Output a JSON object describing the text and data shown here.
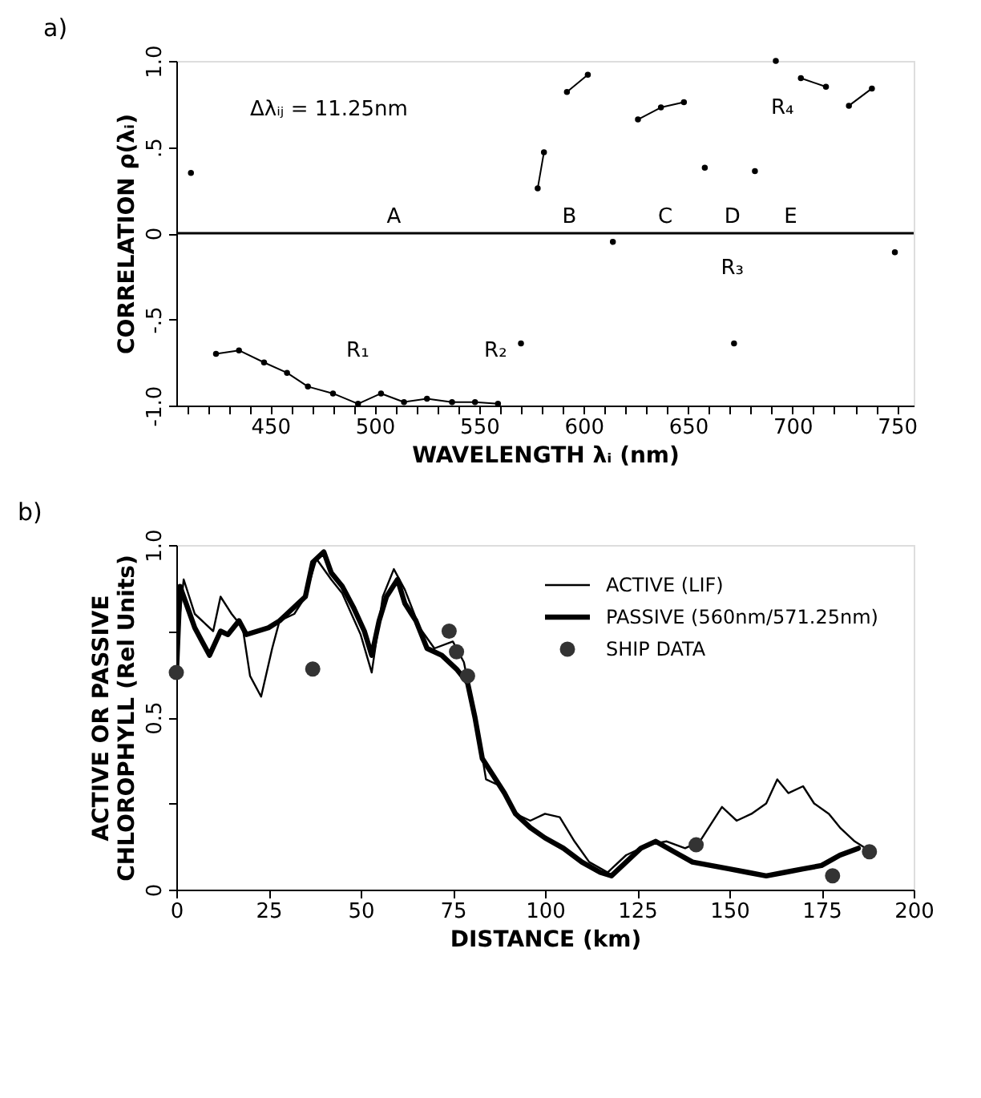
{
  "chart_data": [
    {
      "type": "line",
      "title": "a)",
      "xlabel": "WAVELENGTH λᵢ (nm)",
      "ylabel": "CORRELATION ρ(λᵢ)",
      "marker": "circle",
      "grid": false,
      "legend": false,
      "xlim": [
        405,
        758
      ],
      "xticks": [
        {
          "value": 410,
          "label": null
        },
        {
          "value": 420,
          "label": null
        },
        {
          "value": 430,
          "label": null
        },
        {
          "value": 440,
          "label": null
        },
        450,
        {
          "value": 460,
          "label": null
        },
        {
          "value": 470,
          "label": null
        },
        {
          "value": 480,
          "label": null
        },
        {
          "value": 490,
          "label": null
        },
        500,
        {
          "value": 510,
          "label": null
        },
        {
          "value": 520,
          "label": null
        },
        {
          "value": 530,
          "label": null
        },
        {
          "value": 540,
          "label": null
        },
        550,
        {
          "value": 560,
          "label": null
        },
        {
          "value": 570,
          "label": null
        },
        {
          "value": 580,
          "label": null
        },
        {
          "value": 590,
          "label": null
        },
        600,
        {
          "value": 610,
          "label": null
        },
        {
          "value": 620,
          "label": null
        },
        {
          "value": 630,
          "label": null
        },
        {
          "value": 640,
          "label": null
        },
        650,
        {
          "value": 660,
          "label": null
        },
        {
          "value": 670,
          "label": null
        },
        {
          "value": 680,
          "label": null
        },
        {
          "value": 690,
          "label": null
        },
        700,
        {
          "value": 710,
          "label": null
        },
        {
          "value": 720,
          "label": null
        },
        {
          "value": 730,
          "label": null
        },
        {
          "value": 740,
          "label": null
        },
        750
      ],
      "ylim": [
        -1,
        1
      ],
      "yticks": [
        {
          "value": -1,
          "label": "-1.0"
        },
        {
          "value": -0.5,
          "label": "-.5"
        },
        0,
        {
          "value": 0.5,
          "label": ".5"
        },
        {
          "value": 1,
          "label": "1.0"
        }
      ],
      "ref_lines": [
        {
          "axis": "y",
          "value": 0,
          "color": "#000000"
        }
      ],
      "series": [
        {
          "color": "#000000",
          "x": [
            412
          ],
          "values": [
            0.35
          ]
        },
        {
          "color": "#000000",
          "x": [
            424,
            435,
            447,
            458,
            468,
            480,
            492,
            503,
            514,
            525,
            537,
            548,
            559
          ],
          "values": [
            -0.7,
            -0.68,
            -0.75,
            -0.81,
            -0.89,
            -0.93,
            -0.99,
            -0.93,
            -0.98,
            -0.96,
            -0.98,
            -0.98,
            -0.99
          ]
        },
        {
          "color": "#000000",
          "x": [
            570
          ],
          "values": [
            -0.64
          ]
        },
        {
          "color": "#000000",
          "x": [
            578,
            581
          ],
          "values": [
            0.26,
            0.47
          ]
        },
        {
          "color": "#000000",
          "x": [
            592,
            602
          ],
          "values": [
            0.82,
            0.92
          ]
        },
        {
          "color": "#000000",
          "x": [
            614
          ],
          "values": [
            -0.05
          ]
        },
        {
          "color": "#000000",
          "x": [
            626,
            637,
            648
          ],
          "values": [
            0.66,
            0.73,
            0.76
          ]
        },
        {
          "color": "#000000",
          "x": [
            658
          ],
          "values": [
            0.38
          ]
        },
        {
          "color": "#000000",
          "x": [
            672
          ],
          "values": [
            -0.64
          ]
        },
        {
          "color": "#000000",
          "x": [
            682
          ],
          "values": [
            0.36
          ]
        },
        {
          "color": "#000000",
          "x": [
            692
          ],
          "values": [
            1.0
          ]
        },
        {
          "color": "#000000",
          "x": [
            704,
            716
          ],
          "values": [
            0.9,
            0.85
          ]
        },
        {
          "color": "#000000",
          "x": [
            727,
            738
          ],
          "values": [
            0.74,
            0.84
          ]
        },
        {
          "color": "#000000",
          "x": [
            749
          ],
          "values": [
            -0.11
          ]
        }
      ],
      "annotations": [
        "Δλᵢⱼ = 11.25nm",
        "A",
        "B",
        "C",
        "D",
        "E",
        "R₁",
        "R₂",
        "R₃",
        "R₄"
      ]
    },
    {
      "type": "line",
      "title": "b)",
      "xlabel": "DISTANCE (km)",
      "ylabel": "ACTIVE OR PASSIVE\nCHLOROPHYLL (Rel Units)",
      "grid": false,
      "legend": "top right",
      "xlim": [
        0,
        200
      ],
      "xticks": [
        0,
        25,
        50,
        75,
        100,
        125,
        150,
        175,
        200
      ],
      "ylim": [
        0,
        1
      ],
      "yticks": [
        0,
        {
          "value": 0.25,
          "label": null
        },
        {
          "value": 0.5,
          "label": "0.5"
        },
        {
          "value": 0.75,
          "label": null
        },
        {
          "value": 1,
          "label": "1.0"
        }
      ],
      "series": [
        {
          "name": "ACTIVE (LIF)",
          "color": "#000000",
          "x": [
            0,
            2,
            5,
            10,
            12,
            15,
            18,
            20,
            23,
            26,
            28,
            32,
            35,
            38,
            42,
            45,
            50,
            53,
            56,
            59,
            62,
            66,
            70,
            75,
            78,
            82,
            84,
            88,
            92,
            96,
            100,
            104,
            108,
            112,
            117,
            122,
            128,
            133,
            138,
            142,
            148,
            152,
            156,
            160,
            163,
            166,
            170,
            173,
            177,
            180,
            184,
            187
          ],
          "values": [
            0.7,
            0.9,
            0.8,
            0.75,
            0.85,
            0.8,
            0.76,
            0.62,
            0.56,
            0.7,
            0.78,
            0.8,
            0.85,
            0.96,
            0.9,
            0.86,
            0.74,
            0.63,
            0.85,
            0.93,
            0.87,
            0.76,
            0.7,
            0.72,
            0.66,
            0.45,
            0.32,
            0.3,
            0.22,
            0.2,
            0.22,
            0.21,
            0.14,
            0.08,
            0.05,
            0.1,
            0.13,
            0.14,
            0.12,
            0.14,
            0.24,
            0.2,
            0.22,
            0.25,
            0.32,
            0.28,
            0.3,
            0.25,
            0.22,
            0.18,
            0.14,
            0.12
          ]
        },
        {
          "name": "PASSIVE (560nm/571.25nm)",
          "color": "#000000",
          "x": [
            0,
            1,
            3,
            5,
            7,
            9,
            12,
            14,
            17,
            19,
            22,
            25,
            28,
            30,
            33,
            35,
            37,
            40,
            42,
            45,
            48,
            51,
            53,
            55,
            57,
            60,
            62,
            65,
            68,
            72,
            76,
            79,
            81,
            83,
            86,
            89,
            92,
            96,
            100,
            105,
            110,
            115,
            118,
            122,
            126,
            130,
            135,
            140,
            145,
            150,
            155,
            160,
            165,
            170,
            175,
            180,
            185
          ],
          "values": [
            0.62,
            0.88,
            0.82,
            0.76,
            0.72,
            0.68,
            0.75,
            0.74,
            0.78,
            0.74,
            0.75,
            0.76,
            0.78,
            0.8,
            0.83,
            0.85,
            0.95,
            0.98,
            0.92,
            0.88,
            0.82,
            0.75,
            0.68,
            0.78,
            0.85,
            0.9,
            0.83,
            0.78,
            0.7,
            0.68,
            0.64,
            0.6,
            0.5,
            0.38,
            0.33,
            0.28,
            0.22,
            0.18,
            0.15,
            0.12,
            0.08,
            0.05,
            0.04,
            0.08,
            0.12,
            0.14,
            0.11,
            0.08,
            0.07,
            0.06,
            0.05,
            0.04,
            0.05,
            0.06,
            0.07,
            0.1,
            0.12
          ]
        },
        {
          "name": "SHIP DATA",
          "type": "scatter",
          "marker": "circle",
          "color": "#333333",
          "x": [
            0,
            37,
            74,
            76,
            79,
            141,
            178,
            188
          ],
          "values": [
            0.63,
            0.64,
            0.75,
            0.69,
            0.62,
            0.13,
            0.04,
            0.11
          ]
        }
      ]
    }
  ]
}
